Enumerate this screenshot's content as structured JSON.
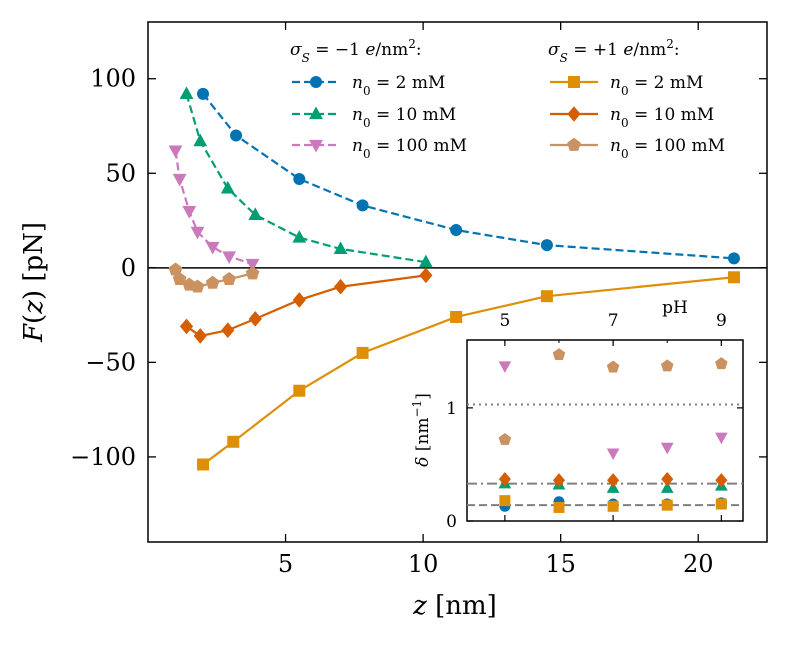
{
  "chart_data": {
    "type": "line",
    "xlabel": "z [nm]",
    "ylabel": "F(z) [pN]",
    "xlim": [
      0.0,
      22.5
    ],
    "ylim": [
      -145,
      130
    ],
    "xticks": [
      5,
      10,
      15,
      20
    ],
    "yticks": [
      -100,
      -50,
      0,
      50,
      100
    ],
    "xtick_labels": [
      "5",
      "10",
      "15",
      "20"
    ],
    "ytick_labels": [
      "−100",
      "−50",
      "0",
      "50",
      "100"
    ],
    "zero_line": true,
    "legend_placement": "top-right",
    "legend_groups": [
      {
        "title": "σS = −1 e/nm²:"
      },
      {
        "title": "σS = +1 e/nm²:"
      }
    ],
    "series": [
      {
        "name": "n0 = 2 mM",
        "group": 0,
        "color": "#0173b2",
        "marker": "circle",
        "dash": true,
        "x": [
          2.0,
          3.2,
          5.5,
          7.8,
          11.2,
          14.5,
          21.3
        ],
        "y": [
          92,
          70,
          47,
          33,
          20,
          12,
          5
        ]
      },
      {
        "name": "n0 = 10 mM",
        "group": 0,
        "color": "#029e73",
        "marker": "triangle-up",
        "dash": true,
        "x": [
          1.4,
          1.9,
          2.9,
          3.9,
          5.5,
          7.0,
          10.1
        ],
        "y": [
          92,
          67,
          42,
          28,
          16,
          10,
          3
        ]
      },
      {
        "name": "n0 = 100 mM",
        "group": 0,
        "color": "#cc78bc",
        "marker": "triangle-down",
        "dash": true,
        "x": [
          1.0,
          1.15,
          1.5,
          1.8,
          2.35,
          2.95,
          3.8
        ],
        "y": [
          62,
          47,
          30,
          19,
          11,
          6,
          2
        ]
      },
      {
        "name": "n0 = 2 mM",
        "group": 1,
        "color": "#de8f05",
        "marker": "square",
        "dash": false,
        "x": [
          2.0,
          3.1,
          5.5,
          7.8,
          11.2,
          14.5,
          21.3
        ],
        "y": [
          -104,
          -92,
          -65,
          -45,
          -26,
          -15,
          -5
        ]
      },
      {
        "name": "n0 = 10 mM",
        "group": 1,
        "color": "#d55e00",
        "marker": "diamond",
        "dash": false,
        "x": [
          1.4,
          1.9,
          2.9,
          3.9,
          5.5,
          7.0,
          10.1
        ],
        "y": [
          -31,
          -36,
          -33,
          -27,
          -17,
          -10,
          -4
        ]
      },
      {
        "name": "n0 = 100 mM",
        "group": 1,
        "color": "#ca9161",
        "marker": "pentagon",
        "dash": false,
        "x": [
          1.0,
          1.15,
          1.5,
          1.8,
          2.35,
          2.95,
          3.8
        ],
        "y": [
          -1,
          -6,
          -9,
          -10,
          -8,
          -6,
          -3
        ]
      }
    ],
    "inset": {
      "xlabel": "pH",
      "ylabel": "δ [nm⁻¹]",
      "xlim": [
        4.3,
        9.4
      ],
      "ylim": [
        0,
        1.6
      ],
      "xticks": [
        5,
        7,
        9
      ],
      "xtick_labels": [
        "5",
        "7",
        "9"
      ],
      "yticks": [
        0,
        1
      ],
      "ytick_labels": [
        "0",
        "1"
      ],
      "x_axis_position": "top",
      "hlines": [
        {
          "y": 1.03,
          "style": "dotted"
        },
        {
          "y": 0.33,
          "style": "dashdot"
        },
        {
          "y": 0.14,
          "style": "dashed"
        }
      ],
      "points": [
        {
          "series": 0,
          "x": [
            5,
            6,
            7,
            8,
            9
          ],
          "y": [
            0.13,
            0.17,
            0.15,
            0.15,
            0.16
          ]
        },
        {
          "series": 1,
          "x": [
            5,
            6,
            7,
            8,
            9
          ],
          "y": [
            0.33,
            0.32,
            0.29,
            0.29,
            0.31
          ]
        },
        {
          "series": 2,
          "x": [
            5,
            7,
            8,
            9
          ],
          "y": [
            1.37,
            0.6,
            0.65,
            0.74
          ]
        },
        {
          "series": 3,
          "x": [
            5,
            6,
            7,
            8,
            9
          ],
          "y": [
            0.18,
            0.12,
            0.13,
            0.14,
            0.15
          ]
        },
        {
          "series": 4,
          "x": [
            5,
            6,
            7,
            8,
            9
          ],
          "y": [
            0.37,
            0.36,
            0.36,
            0.37,
            0.36
          ]
        },
        {
          "series": 5,
          "x": [
            5,
            6,
            7,
            8,
            9
          ],
          "y": [
            0.72,
            1.47,
            1.36,
            1.37,
            1.39
          ]
        }
      ]
    }
  }
}
